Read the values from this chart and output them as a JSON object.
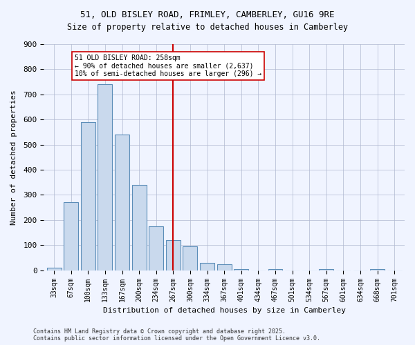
{
  "title_line1": "51, OLD BISLEY ROAD, FRIMLEY, CAMBERLEY, GU16 9RE",
  "title_line2": "Size of property relative to detached houses in Camberley",
  "xlabel": "Distribution of detached houses by size in Camberley",
  "ylabel": "Number of detached properties",
  "categories": [
    "33sqm",
    "67sqm",
    "100sqm",
    "133sqm",
    "167sqm",
    "200sqm",
    "234sqm",
    "267sqm",
    "300sqm",
    "334sqm",
    "367sqm",
    "401sqm",
    "434sqm",
    "467sqm",
    "501sqm",
    "534sqm",
    "567sqm",
    "601sqm",
    "634sqm",
    "668sqm",
    "701sqm"
  ],
  "values": [
    10,
    270,
    590,
    740,
    540,
    340,
    175,
    120,
    95,
    30,
    25,
    5,
    0,
    5,
    0,
    0,
    5,
    0,
    0,
    5,
    0
  ],
  "bar_color": "#c9d9ed",
  "bar_edge_color": "#5b8db8",
  "vline_x": 7,
  "vline_color": "#cc0000",
  "annotation_text": "51 OLD BISLEY ROAD: 258sqm\n← 90% of detached houses are smaller (2,637)\n10% of semi-detached houses are larger (296) →",
  "annotation_box_color": "#ffffff",
  "annotation_box_edge": "#cc0000",
  "footer_line1": "Contains HM Land Registry data © Crown copyright and database right 2025.",
  "footer_line2": "Contains public sector information licensed under the Open Government Licence v3.0.",
  "ylim": [
    0,
    900
  ],
  "background_color": "#f0f4ff"
}
